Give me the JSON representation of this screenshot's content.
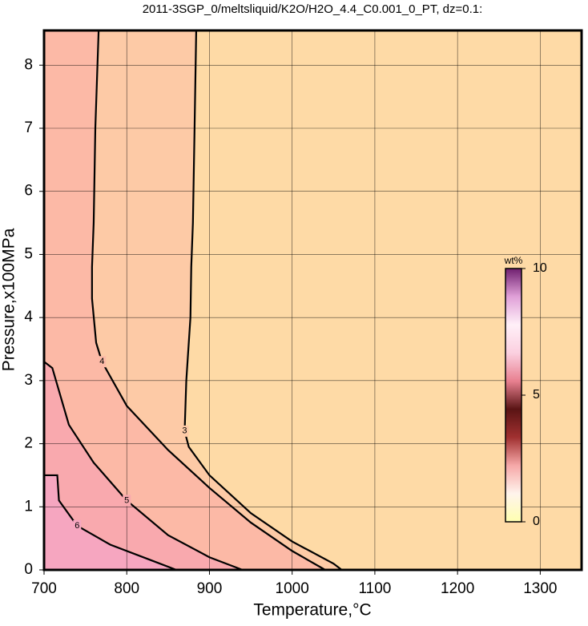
{
  "chart_data": {
    "type": "contour",
    "title": "2011-3SGP_0/meltsliquid/K2O/H2O_4.4_C0.001_0_PT, dz=0.1:",
    "x_label": "Temperature,°C",
    "y_label": "Pressure,x100MPa",
    "xlim": [
      700,
      1350
    ],
    "ylim": [
      0,
      8.55
    ],
    "xticks": [
      700,
      800,
      900,
      1000,
      1100,
      1200,
      1300
    ],
    "yticks": [
      0,
      1,
      2,
      3,
      4,
      5,
      6,
      7,
      8
    ],
    "grid": true,
    "background_color": "#fedaa6",
    "contours": [
      {
        "level": 3,
        "color": "#fdcaa6",
        "x": [
          884,
          882,
          880,
          878,
          877,
          872,
          870,
          875,
          900,
          950,
          1000,
          1050,
          1060
        ],
        "y": [
          8.55,
          7,
          5.5,
          4.8,
          4.0,
          3.0,
          2.2,
          1.95,
          1.5,
          0.9,
          0.45,
          0.1,
          0
        ]
      },
      {
        "level": 4,
        "color": "#fcb9a6",
        "x": [
          766,
          762,
          760,
          758,
          758,
          763,
          770,
          800,
          850,
          900,
          950,
          1000,
          1040
        ],
        "y": [
          8.55,
          7,
          5.5,
          4.8,
          4.3,
          3.6,
          3.3,
          2.6,
          1.9,
          1.3,
          0.75,
          0.3,
          0
        ]
      },
      {
        "level": 5,
        "color": "#f9a9ae",
        "x": [
          700,
          710,
          730,
          760,
          800,
          850,
          900,
          940
        ],
        "y": [
          3.3,
          3.2,
          2.3,
          1.7,
          1.1,
          0.55,
          0.2,
          0
        ]
      },
      {
        "level": 6,
        "color": "#f6a6c0",
        "x": [
          700,
          716,
          718,
          740,
          780,
          830,
          860
        ],
        "y": [
          1.5,
          1.5,
          1.1,
          0.7,
          0.4,
          0.15,
          0
        ]
      }
    ],
    "colorbar": {
      "label": "wt%",
      "lim": [
        0,
        10
      ],
      "ticks": [
        0,
        5,
        10
      ],
      "colors": [
        "#ffffb0",
        "#fff4ec",
        "#f6a8a8",
        "#a03030",
        "#5a1414",
        "#e88090",
        "#fbd0e0",
        "#fff0f8",
        "#e0a0d8",
        "#702070"
      ]
    }
  }
}
